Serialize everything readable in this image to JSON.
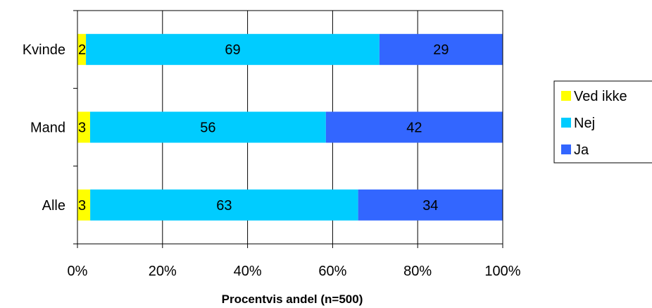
{
  "chart_data": {
    "type": "bar",
    "orientation": "horizontal",
    "stacked": true,
    "categories": [
      "Kvinde",
      "Mand",
      "Alle"
    ],
    "series": [
      {
        "name": "Ved ikke",
        "values": [
          2,
          3,
          3
        ],
        "color": "#FFFF00"
      },
      {
        "name": "Nej",
        "values": [
          69,
          56,
          63
        ],
        "color": "#00CCFF"
      },
      {
        "name": "Ja",
        "values": [
          29,
          42,
          34
        ],
        "color": "#3366FF"
      }
    ],
    "x_ticks": [
      "0%",
      "20%",
      "40%",
      "60%",
      "80%",
      "100%"
    ],
    "xlim": [
      0,
      100
    ],
    "xlabel": "Procentvis andel (n=500)",
    "ylabel": "",
    "title": "",
    "grid": true,
    "legend_position": "right",
    "legend_order": [
      "Ved ikke",
      "Nej",
      "Ja"
    ]
  }
}
